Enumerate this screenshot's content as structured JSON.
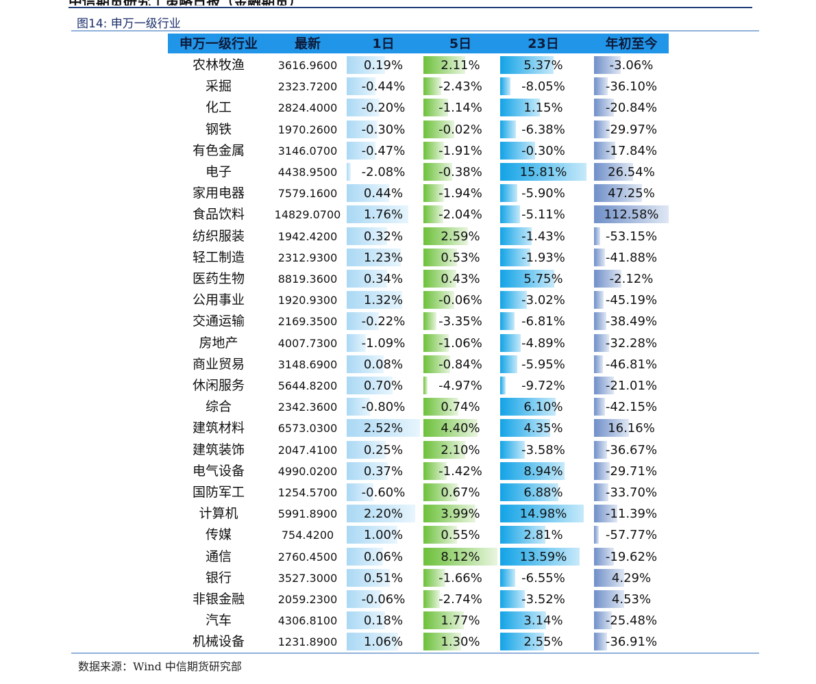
{
  "doc": {
    "top_cut_text": "中信期货研究 | 策略日报（金融期货）",
    "caption": "图14: 申万一级行业",
    "source": "数据来源：Wind    中信期货研究部"
  },
  "table": {
    "headers": [
      "申万一级行业",
      "最新",
      "1日",
      "5日",
      "23日",
      "年初至今"
    ],
    "rows": [
      {
        "name": "农林牧渔",
        "latest": "3616.9600",
        "d1": "0.19%",
        "d5": "2.11%",
        "d23": "5.37%",
        "ytd": "-3.06%"
      },
      {
        "name": "采掘",
        "latest": "2323.7200",
        "d1": "-0.44%",
        "d5": "-2.43%",
        "d23": "-8.05%",
        "ytd": "-36.10%"
      },
      {
        "name": "化工",
        "latest": "2824.4000",
        "d1": "-0.20%",
        "d5": "-1.14%",
        "d23": "1.15%",
        "ytd": "-20.84%"
      },
      {
        "name": "钢铁",
        "latest": "1970.2600",
        "d1": "-0.30%",
        "d5": "-0.02%",
        "d23": "-6.38%",
        "ytd": "-29.97%"
      },
      {
        "name": "有色金属",
        "latest": "3146.0700",
        "d1": "-0.47%",
        "d5": "-1.91%",
        "d23": "-0.30%",
        "ytd": "-17.84%"
      },
      {
        "name": "电子",
        "latest": "4438.9500",
        "d1": "-2.08%",
        "d5": "-0.38%",
        "d23": "15.81%",
        "ytd": "26.54%"
      },
      {
        "name": "家用电器",
        "latest": "7579.1600",
        "d1": "0.44%",
        "d5": "-1.94%",
        "d23": "-5.90%",
        "ytd": "47.25%"
      },
      {
        "name": "食品饮料",
        "latest": "14829.0700",
        "d1": "1.76%",
        "d5": "-2.04%",
        "d23": "-5.11%",
        "ytd": "112.58%"
      },
      {
        "name": "纺织服装",
        "latest": "1942.4200",
        "d1": "0.32%",
        "d5": "2.59%",
        "d23": "-1.43%",
        "ytd": "-53.15%"
      },
      {
        "name": "轻工制造",
        "latest": "2312.9300",
        "d1": "1.23%",
        "d5": "0.53%",
        "d23": "-1.93%",
        "ytd": "-41.88%"
      },
      {
        "name": "医药生物",
        "latest": "8819.3600",
        "d1": "0.34%",
        "d5": "0.43%",
        "d23": "5.75%",
        "ytd": "-2.12%"
      },
      {
        "name": "公用事业",
        "latest": "1920.9300",
        "d1": "1.32%",
        "d5": "-0.06%",
        "d23": "-3.02%",
        "ytd": "-45.19%"
      },
      {
        "name": "交通运输",
        "latest": "2169.3500",
        "d1": "-0.22%",
        "d5": "-3.35%",
        "d23": "-6.81%",
        "ytd": "-38.49%"
      },
      {
        "name": "房地产",
        "latest": "4007.7300",
        "d1": "-1.09%",
        "d5": "-1.06%",
        "d23": "-4.89%",
        "ytd": "-32.28%"
      },
      {
        "name": "商业贸易",
        "latest": "3148.6900",
        "d1": "0.08%",
        "d5": "-0.84%",
        "d23": "-5.95%",
        "ytd": "-46.81%"
      },
      {
        "name": "休闲服务",
        "latest": "5644.8200",
        "d1": "0.70%",
        "d5": "-4.97%",
        "d23": "-9.72%",
        "ytd": "-21.01%"
      },
      {
        "name": "综合",
        "latest": "2342.3600",
        "d1": "-0.80%",
        "d5": "0.74%",
        "d23": "6.10%",
        "ytd": "-42.15%"
      },
      {
        "name": "建筑材料",
        "latest": "6573.0300",
        "d1": "2.52%",
        "d5": "4.40%",
        "d23": "4.35%",
        "ytd": "16.16%"
      },
      {
        "name": "建筑装饰",
        "latest": "2047.4100",
        "d1": "0.25%",
        "d5": "2.10%",
        "d23": "-3.58%",
        "ytd": "-36.67%"
      },
      {
        "name": "电气设备",
        "latest": "4990.0200",
        "d1": "0.37%",
        "d5": "-1.42%",
        "d23": "8.94%",
        "ytd": "-29.71%"
      },
      {
        "name": "国防军工",
        "latest": "1254.5700",
        "d1": "-0.60%",
        "d5": "0.67%",
        "d23": "6.88%",
        "ytd": "-33.70%"
      },
      {
        "name": "计算机",
        "latest": "5991.8900",
        "d1": "2.20%",
        "d5": "3.99%",
        "d23": "14.98%",
        "ytd": "-11.39%"
      },
      {
        "name": "传媒",
        "latest": "754.4200",
        "d1": "1.00%",
        "d5": "0.55%",
        "d23": "2.81%",
        "ytd": "-57.77%"
      },
      {
        "name": "通信",
        "latest": "2760.4500",
        "d1": "0.06%",
        "d5": "8.12%",
        "d23": "13.59%",
        "ytd": "-19.62%"
      },
      {
        "name": "银行",
        "latest": "3527.3000",
        "d1": "0.51%",
        "d5": "-1.66%",
        "d23": "-6.55%",
        "ytd": "4.29%"
      },
      {
        "name": "非银金融",
        "latest": "2059.2300",
        "d1": "-0.06%",
        "d5": "-2.74%",
        "d23": "-3.52%",
        "ytd": "4.53%"
      },
      {
        "name": "汽车",
        "latest": "4306.8100",
        "d1": "0.18%",
        "d5": "1.77%",
        "d23": "3.14%",
        "ytd": "-25.48%"
      },
      {
        "name": "机械设备",
        "latest": "1231.8900",
        "d1": "1.06%",
        "d5": "1.30%",
        "d23": "2.55%",
        "ytd": "-36.91%"
      }
    ]
  },
  "colors": {
    "header_bg": "#2196e8",
    "bar_1d": "#aad8f4",
    "bar_5d": "#6cc03a",
    "bar_23d": "#12a3e6",
    "bar_ytd": "#6f8fc8"
  }
}
